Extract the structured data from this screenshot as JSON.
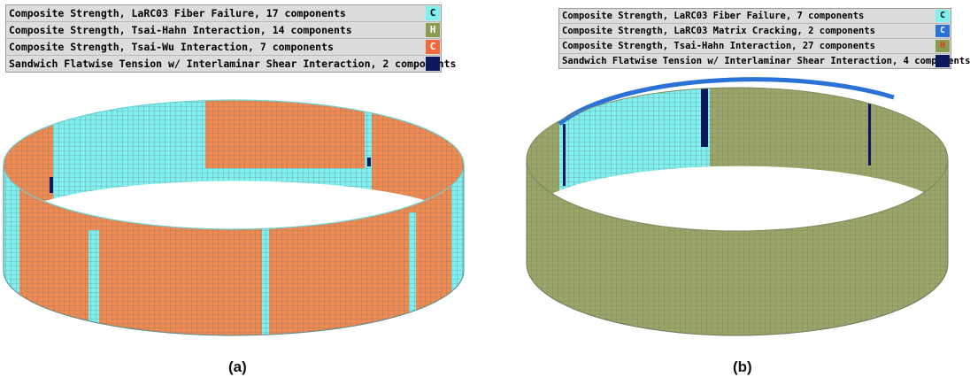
{
  "panels": [
    {
      "caption": "(a)",
      "legend": [
        {
          "label": "Composite Strength, LaRC03 Fiber Failure, 17 components",
          "code": "C",
          "color": "#7ff0f0",
          "code_color": "#000000"
        },
        {
          "label": "Composite Strength, Tsai-Hahn Interaction, 14 components",
          "code": "H",
          "color": "#8a9a4e",
          "code_color": "#ffffff"
        },
        {
          "label": "Composite Strength, Tsai-Wu Interaction, 7 components",
          "code": "C",
          "color": "#f2683a",
          "code_color": "#ffffff"
        },
        {
          "label": "Sandwich Flatwise Tension w/ Interlaminar Shear Interaction, 2 components",
          "code": "",
          "color": "#0b1a5c",
          "code_color": "#ffffff"
        }
      ]
    },
    {
      "caption": "(b)",
      "legend": [
        {
          "label": "Composite Strength, LaRC03 Fiber Failure, 7 components",
          "code": "C",
          "color": "#7ff0f0",
          "code_color": "#000000"
        },
        {
          "label": "Composite Strength, LaRC03 Matrix Cracking, 2 components",
          "code": "C",
          "color": "#2a72d8",
          "code_color": "#ffffff"
        },
        {
          "label": "Composite Strength, Tsai-Hahn Interaction, 27 components",
          "code": "H",
          "color": "#8a9a4e",
          "code_color": "#e83a1a"
        },
        {
          "label": "Sandwich Flatwise Tension w/ Interlaminar Shear Interaction, 4 components",
          "code": "",
          "color": "#0b1a5c",
          "code_color": "#ffffff"
        }
      ]
    }
  ],
  "colors": {
    "cyan": "#7ff0f0",
    "orange": "#f08a50",
    "olive": "#9aa668",
    "navy": "#0b1a5c",
    "blue": "#2a72d8",
    "grid": "#7f8a8a"
  }
}
